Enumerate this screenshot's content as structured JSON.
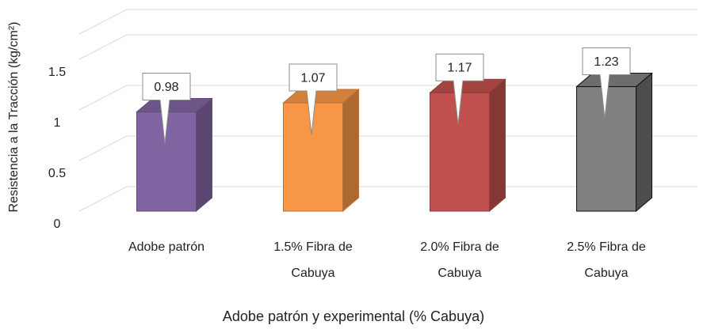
{
  "chart_data": {
    "type": "bar3d",
    "categories": [
      "Adobe patrón",
      "1.5% Fibra de Cabuya",
      "2.0% Fibra de Cabuya",
      "2.5% Fibra de Cabuya"
    ],
    "values": [
      0.98,
      1.07,
      1.17,
      1.23
    ],
    "colors": [
      "#8064a2",
      "#f79646",
      "#c0504d",
      "#808080"
    ],
    "ylim": [
      0,
      1.75
    ],
    "yticks": [
      0,
      0.5,
      1,
      1.5
    ],
    "grid": true,
    "y_label": "Resistencia a la Tracción (kg/cm²)",
    "x_label": "Adobe patrón y experimental (% Cabuya)"
  }
}
